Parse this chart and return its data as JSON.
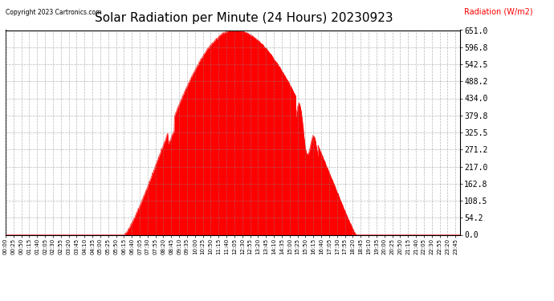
{
  "title": "Solar Radiation per Minute (24 Hours) 20230923",
  "copyright_text": "Copyright 2023 Cartronics.com",
  "ylabel": "Radiation (W/m2)",
  "ylabel_color": "#ff0000",
  "fill_color": "#ff0000",
  "line_color": "#ff0000",
  "background_color": "#ffffff",
  "grid_color": "#888888",
  "title_fontsize": 11,
  "ymin": 0.0,
  "ymax": 651.0,
  "yticks": [
    0.0,
    54.2,
    108.5,
    162.8,
    217.0,
    271.2,
    325.5,
    379.8,
    434.0,
    488.2,
    542.5,
    596.8,
    651.0
  ],
  "sunrise_minute": 375,
  "sunset_minute": 1110,
  "peak_minute": 725,
  "peak_value": 651.0,
  "total_minutes": 1440,
  "tick_step": 25
}
